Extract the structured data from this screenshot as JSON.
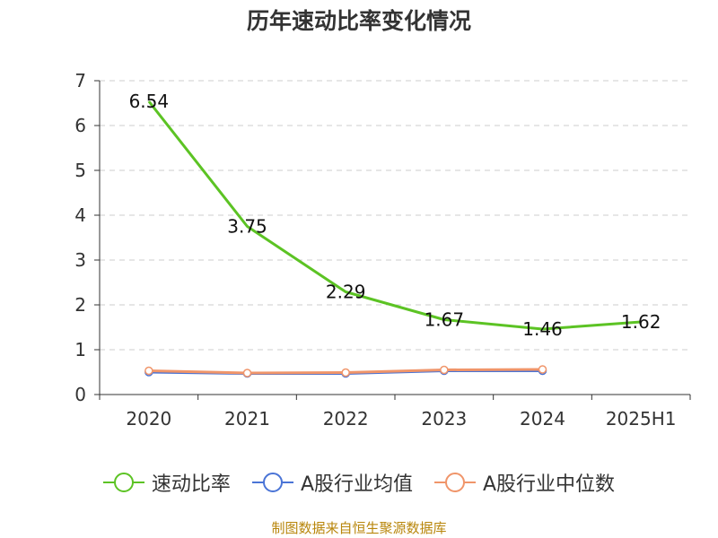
{
  "title": "历年速动比率变化情况",
  "source": "制图数据来自恒生聚源数据库",
  "chart_data": {
    "type": "line",
    "categories": [
      "2020",
      "2021",
      "2022",
      "2023",
      "2024",
      "2025H1"
    ],
    "ylim": [
      0,
      7
    ],
    "yticks": [
      "0",
      "1",
      "2",
      "3",
      "4",
      "5",
      "6",
      "7"
    ],
    "grid": true,
    "legend_position": "bottom",
    "series": [
      {
        "name": "速动比率",
        "color": "#5cc324",
        "values": [
          6.54,
          3.75,
          2.29,
          1.67,
          1.46,
          1.62
        ],
        "labels": [
          "6.54",
          "3.75",
          "2.29",
          "1.67",
          "1.46",
          "1.62"
        ]
      },
      {
        "name": "A股行业均值",
        "color": "#4a74d6",
        "values": [
          0.5,
          0.47,
          0.47,
          0.53,
          0.53,
          null
        ]
      },
      {
        "name": "A股行业中位数",
        "color": "#f0956a",
        "values": [
          0.53,
          0.48,
          0.49,
          0.55,
          0.56,
          null
        ]
      }
    ]
  }
}
